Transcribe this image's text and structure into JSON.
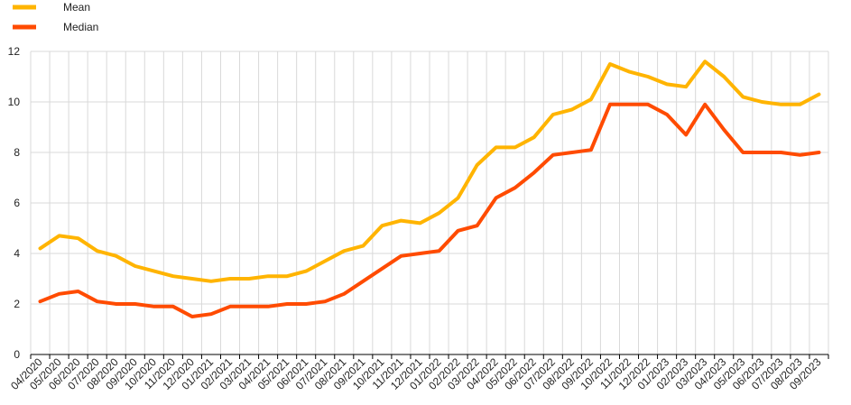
{
  "chart_data": {
    "type": "line",
    "categories": [
      "04/2020",
      "05/2020",
      "06/2020",
      "07/2020",
      "08/2020",
      "09/2020",
      "10/2020",
      "11/2020",
      "12/2020",
      "01/2021",
      "02/2021",
      "03/2021",
      "04/2021",
      "05/2021",
      "06/2021",
      "07/2021",
      "08/2021",
      "09/2021",
      "10/2021",
      "11/2021",
      "12/2021",
      "01/2022",
      "02/2022",
      "03/2022",
      "04/2022",
      "05/2022",
      "06/2022",
      "07/2022",
      "08/2022",
      "09/2022",
      "10/2022",
      "11/2022",
      "12/2022",
      "01/2023",
      "02/2023",
      "03/2023",
      "04/2023",
      "05/2023",
      "06/2023",
      "07/2023",
      "08/2023",
      "09/2023"
    ],
    "series": [
      {
        "name": "Mean",
        "color": "#ffb400",
        "values": [
          4.2,
          4.7,
          4.6,
          4.1,
          3.9,
          3.5,
          3.3,
          3.1,
          3.0,
          2.9,
          3.0,
          3.0,
          3.1,
          3.1,
          3.3,
          3.7,
          4.1,
          4.3,
          5.1,
          5.3,
          5.2,
          5.6,
          6.2,
          7.5,
          8.2,
          8.2,
          8.6,
          9.5,
          9.7,
          10.1,
          11.5,
          11.2,
          11.0,
          10.7,
          10.6,
          11.6,
          11.0,
          10.2,
          10.0,
          9.9,
          9.9,
          10.3
        ]
      },
      {
        "name": "Median",
        "color": "#ff4b00",
        "values": [
          2.1,
          2.4,
          2.5,
          2.1,
          2.0,
          2.0,
          1.9,
          1.9,
          1.5,
          1.6,
          1.9,
          1.9,
          1.9,
          2.0,
          2.0,
          2.1,
          2.4,
          2.9,
          3.4,
          3.9,
          4.0,
          4.1,
          4.9,
          5.1,
          6.2,
          6.6,
          7.2,
          7.9,
          8.0,
          8.1,
          9.9,
          9.9,
          9.9,
          9.5,
          8.7,
          9.9,
          8.9,
          8.0,
          8.0,
          8.0,
          7.9,
          8.0
        ]
      }
    ],
    "title": "",
    "xlabel": "",
    "ylabel": "",
    "ylim": [
      0,
      12
    ],
    "yticks": [
      "0",
      "2",
      "4",
      "6",
      "8",
      "10",
      "12"
    ],
    "grid": true,
    "legend_position": "top-left"
  }
}
